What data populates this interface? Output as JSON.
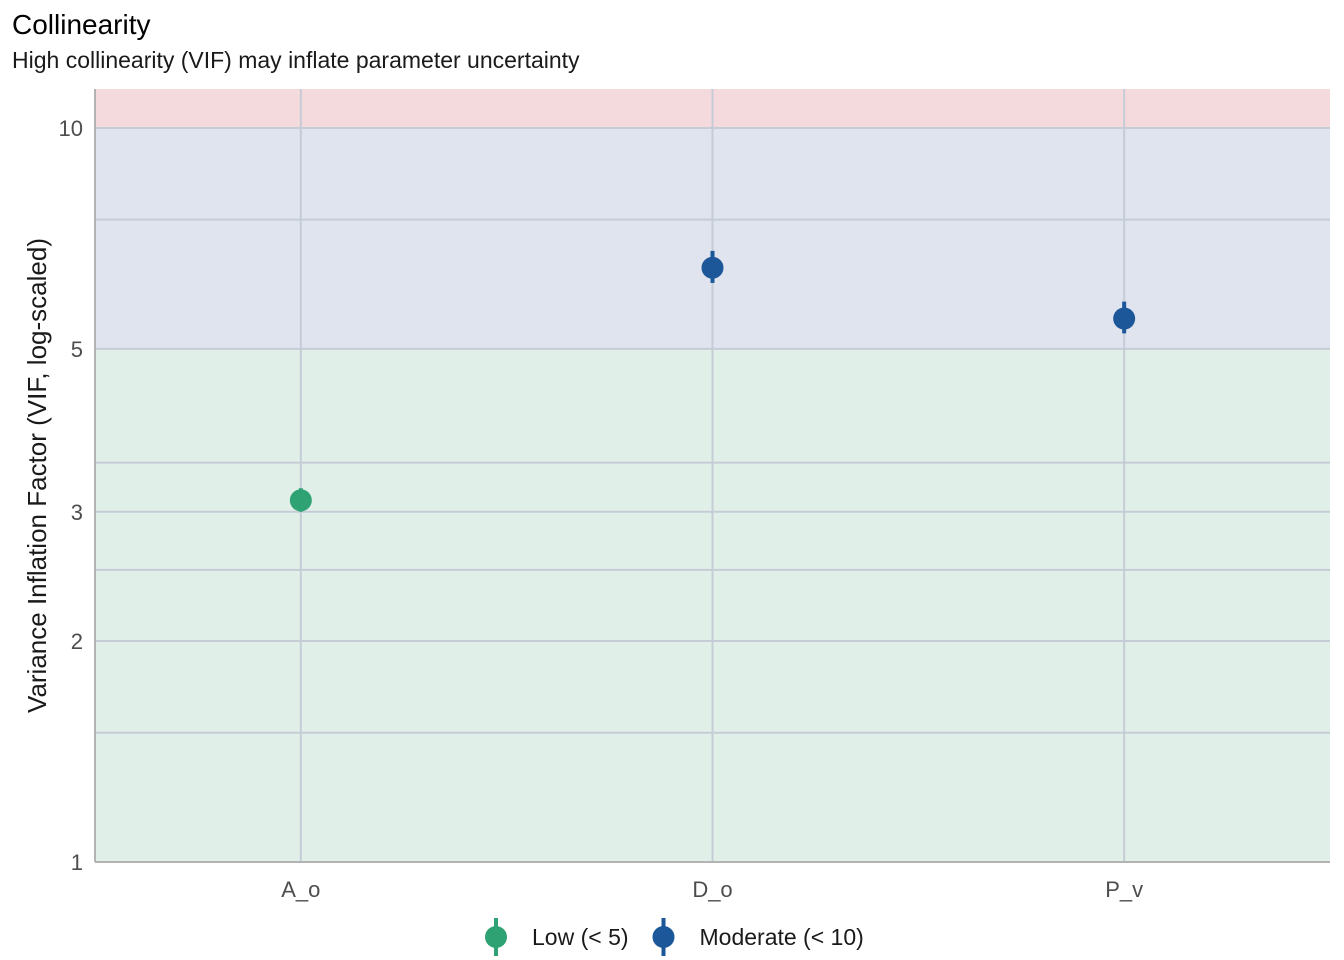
{
  "chart_data": {
    "type": "scatter",
    "title": "Collinearity",
    "subtitle": "High collinearity (VIF) may inflate parameter uncertainty",
    "xlabel": "",
    "ylabel": "Variance Inflation Factor (VIF, log-scaled)",
    "y_scale": "log",
    "ylim": [
      1,
      11.3
    ],
    "y_ticks": [
      1,
      2,
      3,
      5,
      10
    ],
    "y_minor_gridlines": [
      1.5,
      2.5,
      3.5,
      7.5
    ],
    "grid": true,
    "categories": [
      "A_o",
      "D_o",
      "P_v"
    ],
    "points": [
      {
        "category": "A_o",
        "vif": 3.11,
        "ci_low": 3.0,
        "ci_high": 3.23,
        "group": "Low (< 5)"
      },
      {
        "category": "D_o",
        "vif": 6.45,
        "ci_low": 6.15,
        "ci_high": 6.8,
        "group": "Moderate (< 10)"
      },
      {
        "category": "P_v",
        "vif": 5.5,
        "ci_low": 5.25,
        "ci_high": 5.8,
        "group": "Moderate (< 10)"
      }
    ],
    "bands": [
      {
        "from": 1,
        "to": 5,
        "color": "#e0f0e9"
      },
      {
        "from": 5,
        "to": 10,
        "color": "#dfe4ef"
      },
      {
        "from": 10,
        "to": 11.3,
        "color": "#f5dadd"
      }
    ],
    "legend": {
      "position": "bottom",
      "entries": [
        {
          "label": "Low (< 5)",
          "color": "#2fa274"
        },
        {
          "label": "Moderate (< 10)",
          "color": "#1b5799"
        }
      ]
    },
    "colors": {
      "axis": "#b3b3b3",
      "grid": "#c5ccd6",
      "tick_text": "#4d4d4d"
    }
  }
}
